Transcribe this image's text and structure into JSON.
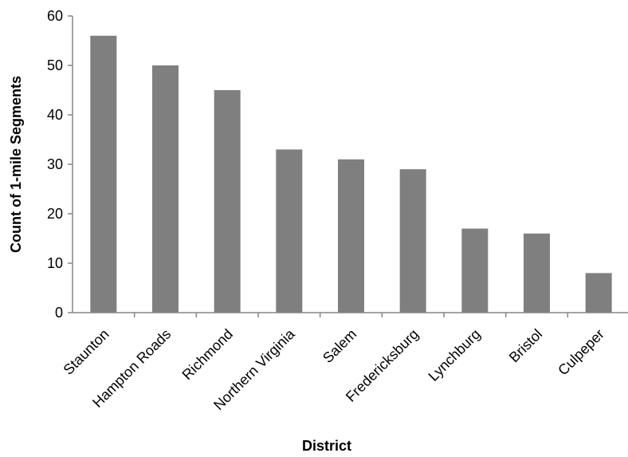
{
  "chart_data": {
    "type": "bar",
    "title": "",
    "xlabel": "District",
    "ylabel": "Count of 1-mile Segments",
    "categories": [
      "Staunton",
      "Hampton Roads",
      "Richmond",
      "Northern Virginia",
      "Salem",
      "Fredericksburg",
      "Lynchburg",
      "Bristol",
      "Culpeper"
    ],
    "values": [
      56,
      50,
      45,
      33,
      31,
      29,
      17,
      16,
      8
    ],
    "ylim": [
      0,
      60
    ],
    "yticks": [
      0,
      10,
      20,
      30,
      40,
      50,
      60
    ],
    "grid": false,
    "legend": "none",
    "bar_color": "#7f7f7f",
    "axis_color": "#868686"
  }
}
